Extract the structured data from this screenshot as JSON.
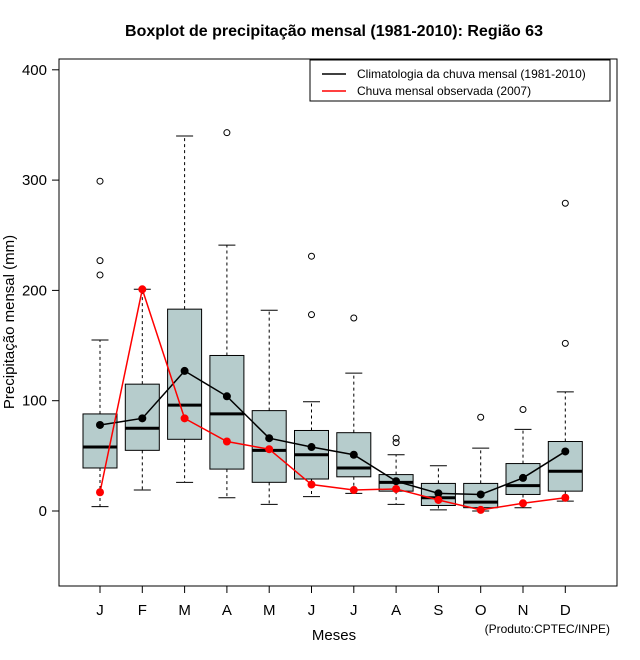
{
  "chart_data": {
    "type": "boxplot",
    "title": "Boxplot de precipitação mensal (1981-2010): Região 63",
    "xlabel": "Meses",
    "ylabel": "Precipitação mensal (mm)",
    "ylim": [
      -68,
      410
    ],
    "yticks": [
      0,
      100,
      200,
      300,
      400
    ],
    "categories": [
      "J",
      "F",
      "M",
      "A",
      "M",
      "J",
      "J",
      "A",
      "S",
      "O",
      "N",
      "D"
    ],
    "boxes": [
      {
        "whisker_low": 4,
        "q1": 39,
        "median": 58,
        "q3": 88,
        "whisker_high": 155,
        "outliers": [
          214,
          227,
          299
        ]
      },
      {
        "whisker_low": 19,
        "q1": 55,
        "median": 75,
        "q3": 115,
        "whisker_high": 201,
        "outliers": []
      },
      {
        "whisker_low": 26,
        "q1": 65,
        "median": 96,
        "q3": 183,
        "whisker_high": 340,
        "outliers": []
      },
      {
        "whisker_low": 12,
        "q1": 38,
        "median": 88,
        "q3": 141,
        "whisker_high": 241,
        "outliers": [
          343
        ]
      },
      {
        "whisker_low": 6,
        "q1": 26,
        "median": 55,
        "q3": 91,
        "whisker_high": 182,
        "outliers": []
      },
      {
        "whisker_low": 13,
        "q1": 29,
        "median": 51,
        "q3": 73,
        "whisker_high": 99,
        "outliers": [
          178,
          231
        ]
      },
      {
        "whisker_low": 16,
        "q1": 31,
        "median": 39,
        "q3": 71,
        "whisker_high": 125,
        "outliers": [
          175
        ]
      },
      {
        "whisker_low": 6,
        "q1": 18,
        "median": 26,
        "q3": 33,
        "whisker_high": 51,
        "outliers": [
          62,
          66
        ]
      },
      {
        "whisker_low": 1,
        "q1": 5,
        "median": 12,
        "q3": 25,
        "whisker_high": 41,
        "outliers": []
      },
      {
        "whisker_low": 0,
        "q1": 3,
        "median": 8,
        "q3": 25,
        "whisker_high": 57,
        "outliers": [
          85
        ]
      },
      {
        "whisker_low": 3,
        "q1": 15,
        "median": 23,
        "q3": 43,
        "whisker_high": 74,
        "outliers": [
          92
        ]
      },
      {
        "whisker_low": 9,
        "q1": 18,
        "median": 36,
        "q3": 63,
        "whisker_high": 108,
        "outliers": [
          152,
          279
        ]
      }
    ],
    "series": [
      {
        "name": "Climatologia da chuva mensal (1981-2010)",
        "color": "#000000",
        "values": [
          78,
          84,
          127,
          104,
          66,
          58,
          51,
          27,
          16,
          15,
          30,
          54
        ]
      },
      {
        "name": "Chuva mensal observada (2007)",
        "color": "#ff0000",
        "values": [
          17,
          201,
          84,
          63,
          56,
          24,
          19,
          20,
          10,
          1,
          7,
          12
        ]
      }
    ],
    "box_color": "#b6cccc",
    "legend_position": "top-right",
    "credit": "(Produto:CPTEC/INPE)"
  }
}
